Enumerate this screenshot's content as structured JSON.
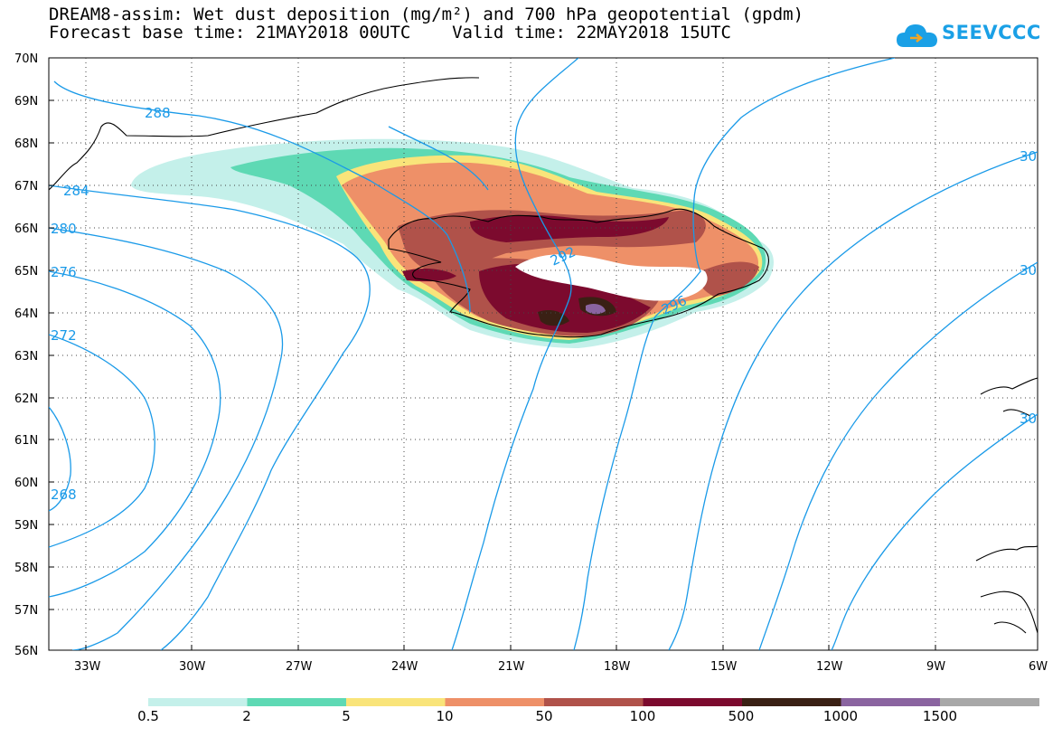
{
  "title": {
    "line1": "DREAM8-assim: Wet dust deposition (mg/m²) and 700 hPa geopotential (gpdm)",
    "line2": "Forecast base time: 21MAY2018 00UTC    Valid time: 22MAY2018 15UTC"
  },
  "logo": {
    "text": "SEEVCCC",
    "icon": "cloud-icon"
  },
  "map": {
    "lat_labels": [
      "70N",
      "69N",
      "68N",
      "67N",
      "66N",
      "65N",
      "64N",
      "63N",
      "62N",
      "61N",
      "60N",
      "59N",
      "58N",
      "57N",
      "56N"
    ],
    "lon_labels": [
      "33W",
      "30W",
      "27W",
      "24W",
      "21W",
      "18W",
      "15W",
      "12W",
      "9W",
      "6W"
    ],
    "contour_labels": [
      "288",
      "284",
      "280",
      "276",
      "272",
      "268",
      "292",
      "296",
      "30",
      "30",
      "30"
    ],
    "contour_color": "#1a9ae8",
    "region": "Iceland"
  },
  "colorbar": {
    "labels": [
      "0.5",
      "2",
      "5",
      "10",
      "50",
      "100",
      "500",
      "1000",
      "1500"
    ],
    "colors": [
      "#c4f0ea",
      "#5ed9b4",
      "#f9e47a",
      "#ee9068",
      "#b0524a",
      "#7c0a2e",
      "#3a2014",
      "#8a64a0",
      "#a8a8a8"
    ]
  }
}
